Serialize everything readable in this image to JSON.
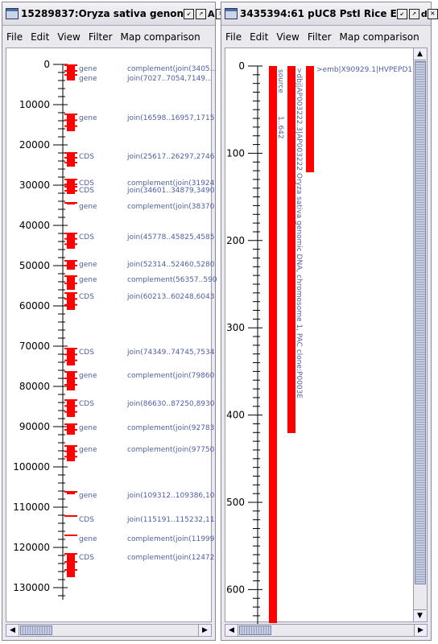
{
  "menu": [
    "File",
    "Edit",
    "View",
    "Filter",
    "Map comparison"
  ],
  "window1": {
    "title": "15289837:Oryza sativa genon",
    "title_suffix": "A",
    "ruler_labels": [
      "0",
      "10000",
      "20000",
      "30000",
      "40000",
      "50000",
      "60000",
      "70000",
      "80000",
      "90000",
      "100000",
      "110000",
      "120000",
      "130000"
    ],
    "features": [
      {
        "type": "gene",
        "location": "complement(join(3405..."
      },
      {
        "type": "gene",
        "location": "join(7027..7054,7149..."
      },
      {
        "type": "gene",
        "location": "join(16598..16957,1715"
      },
      {
        "type": "CDS",
        "location": "join(25617..26297,2746"
      },
      {
        "type": "CDS",
        "location": "complement(join(31924"
      },
      {
        "type": "CDS",
        "location": "join(34601..34879,3490"
      },
      {
        "type": "gene",
        "location": "complement(join(38370"
      },
      {
        "type": "CDS",
        "location": "join(45778..45825,4585"
      },
      {
        "type": "gene",
        "location": "join(52314..52460,5280"
      },
      {
        "type": "gene",
        "location": "complement(56357..590"
      },
      {
        "type": "CDS",
        "location": "join(60213..60248,6043"
      },
      {
        "type": "CDS",
        "location": "join(74349..74745,7534"
      },
      {
        "type": "gene",
        "location": "complement(join(79860"
      },
      {
        "type": "CDS",
        "location": "join(86630..87250,8930"
      },
      {
        "type": "gene",
        "location": "complement(join(92783"
      },
      {
        "type": "gene",
        "location": "complement(join(97750"
      },
      {
        "type": "gene",
        "location": "join(109312..109386,10"
      },
      {
        "type": "CDS",
        "location": "join(115191..115232,11"
      },
      {
        "type": "gene",
        "location": "complement(join(11999"
      },
      {
        "type": "CDS",
        "location": "complement(join(12472"
      }
    ]
  },
  "window2": {
    "title": "3435394:61 pUC8 PstI Rice E",
    "title_suffix": "d",
    "ruler_labels": [
      "0",
      "100",
      "200",
      "300",
      "400",
      "500",
      "600"
    ],
    "tracks": [
      {
        "label": "source"
      },
      {
        "label": "1..642"
      },
      {
        "label": ">dbj|AP003222.3|AP003222 Oryza sativa genomic DNA, chromosome 1, PAC clone:P0003E"
      },
      {
        "label": ">emb|X90929.1|HVPEPD1"
      }
    ]
  }
}
